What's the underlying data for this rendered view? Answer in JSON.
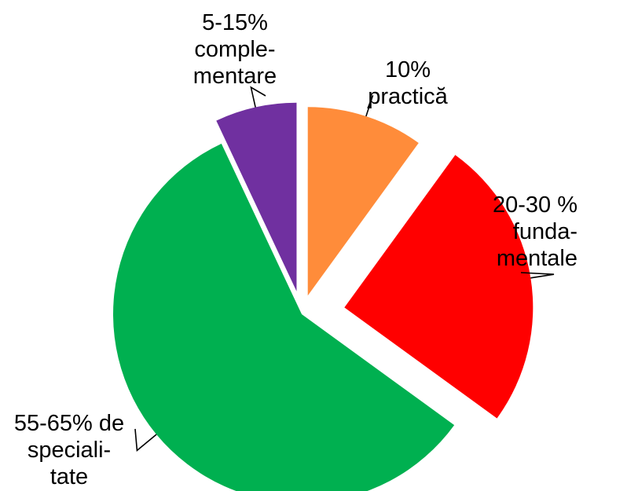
{
  "chart_data": {
    "type": "pie",
    "title": "",
    "slices": [
      {
        "label_lines": [
          "10%",
          "practică"
        ],
        "value": 10,
        "color": "#FF8C3A"
      },
      {
        "label_lines": [
          "20-30 %",
          "funda-",
          "mentale"
        ],
        "value": 25,
        "color": "#FF0000"
      },
      {
        "label_lines": [
          "55-65% de",
          "speciali-",
          "tate"
        ],
        "value": 58,
        "color": "#00B050"
      },
      {
        "label_lines": [
          "5-15%",
          "comple-",
          "mentare"
        ],
        "value": 7,
        "color": "#7030A0"
      }
    ],
    "exploded": true,
    "legend": "none",
    "data_labels": "outside-with-leader-lines"
  }
}
